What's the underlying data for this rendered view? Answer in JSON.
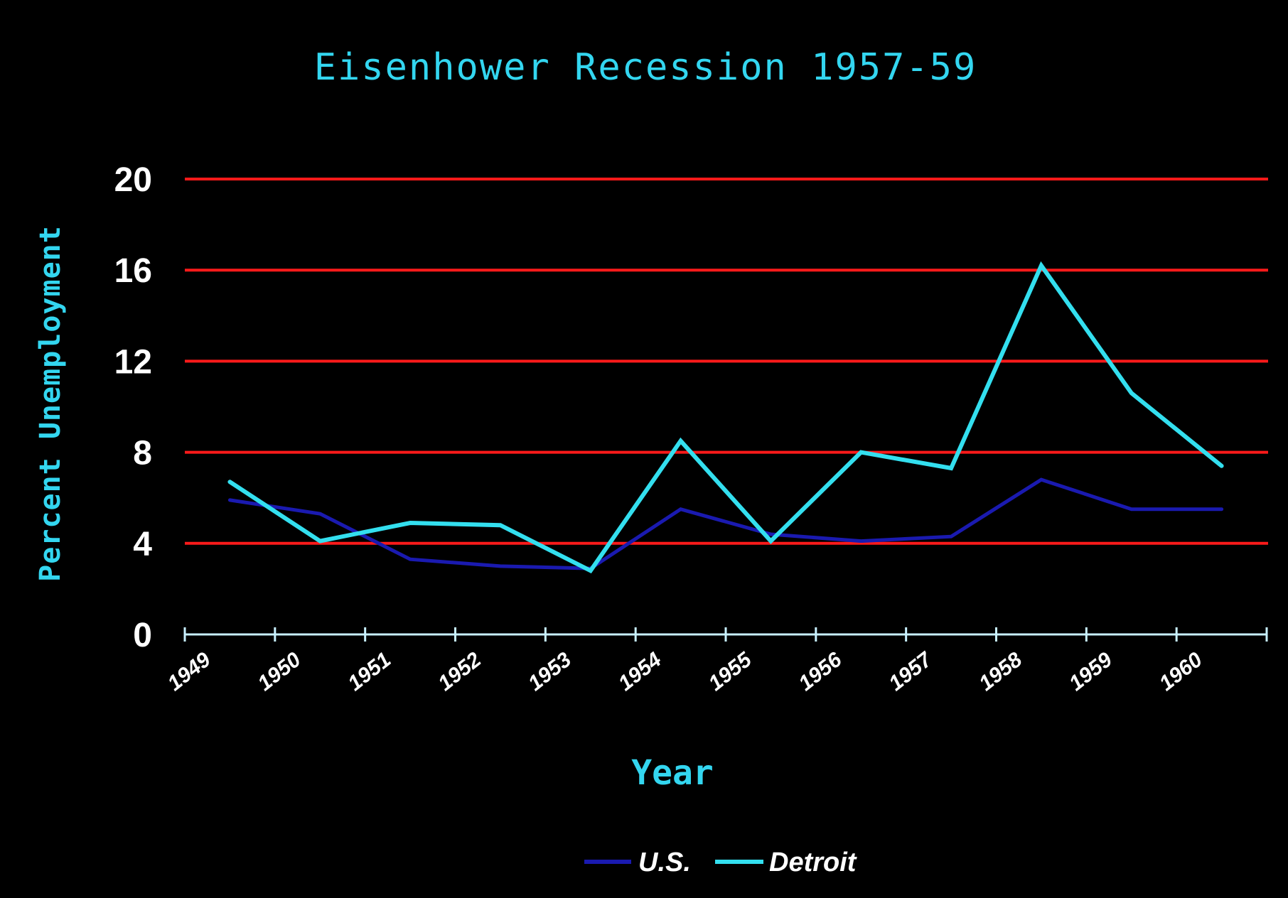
{
  "chart_data": {
    "type": "line",
    "title": "Eisenhower Recession 1957-59",
    "xlabel": "Year",
    "ylabel": "Percent Unemployment",
    "categories": [
      "1949",
      "1950",
      "1951",
      "1952",
      "1953",
      "1954",
      "1955",
      "1956",
      "1957",
      "1958",
      "1959",
      "1960"
    ],
    "ylim": [
      0,
      20
    ],
    "yticks": [
      "0",
      "4",
      "8",
      "12",
      "16",
      "20"
    ],
    "grid": true,
    "legend_position": "bottom",
    "series": [
      {
        "name": "U.S.",
        "color": "#1a1ab0",
        "values": [
          5.9,
          5.3,
          3.3,
          3.0,
          2.9,
          5.5,
          4.4,
          4.1,
          4.3,
          6.8,
          5.5,
          5.5
        ]
      },
      {
        "name": "Detroit",
        "color": "#33dfef",
        "values": [
          6.7,
          4.1,
          4.9,
          4.8,
          2.8,
          8.5,
          4.1,
          8.0,
          7.3,
          16.2,
          10.6,
          7.4
        ]
      }
    ],
    "colors": {
      "background": "#000000",
      "gridline": "#ff1a1a",
      "axis": "#c8f0ff",
      "title": "#33d6f0",
      "tick_labels": "#ffffff"
    }
  }
}
